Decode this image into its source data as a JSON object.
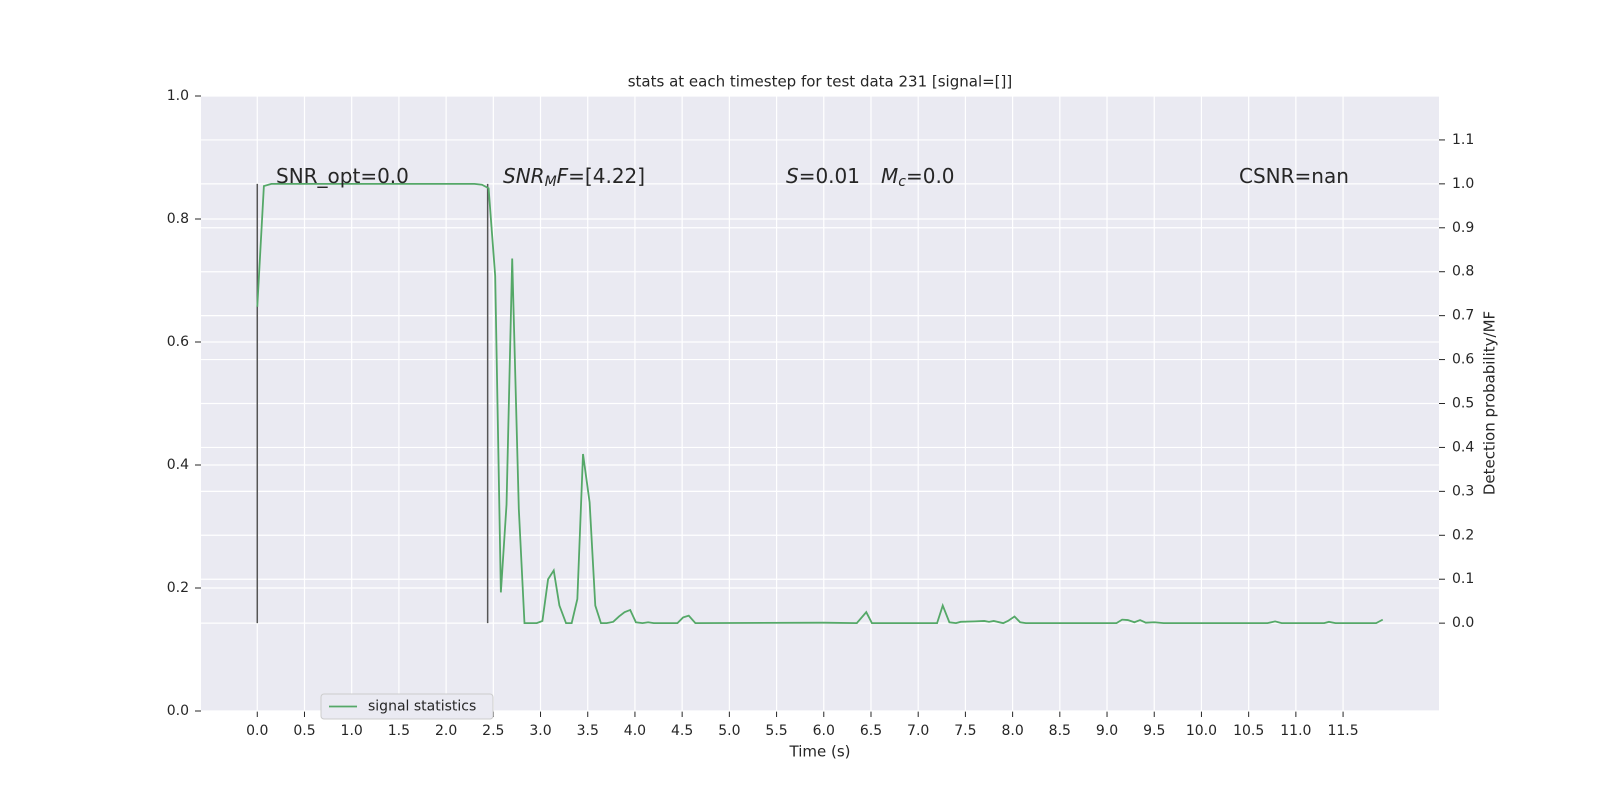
{
  "chart_data": {
    "type": "line",
    "title": "stats at each timestep for test data 231 [signal=[]]",
    "xlabel": "Time (s)",
    "y2label": "Detection probability/MF",
    "annotations": [
      {
        "parts": [
          "SNR_opt=0.0"
        ]
      },
      {
        "parts": [
          "SNR",
          "M",
          "F",
          "=[4.22]"
        ]
      },
      {
        "parts": [
          "S",
          "=0.01"
        ]
      },
      {
        "parts": [
          "M",
          "c",
          "=0.0"
        ]
      },
      {
        "parts": [
          "CSNR=nan"
        ]
      }
    ],
    "x": [
      0.0,
      0.07,
      0.15,
      2.3,
      2.38,
      2.45,
      2.52,
      2.58,
      2.64,
      2.7,
      2.77,
      2.83,
      2.9,
      2.96,
      3.02,
      3.08,
      3.14,
      3.2,
      3.27,
      3.33,
      3.39,
      3.45,
      3.52,
      3.58,
      3.64,
      3.7,
      3.77,
      3.83,
      3.89,
      3.95,
      4.01,
      4.08,
      4.14,
      4.2,
      4.45,
      4.51,
      4.57,
      4.64,
      6.0,
      6.35,
      6.45,
      6.51,
      7.2,
      7.26,
      7.33,
      7.4,
      7.45,
      7.6,
      7.7,
      7.75,
      7.8,
      7.9,
      7.95,
      8.02,
      8.08,
      8.14,
      9.1,
      9.16,
      9.22,
      9.29,
      9.35,
      9.41,
      9.5,
      9.6,
      10.7,
      10.78,
      10.85,
      11.3,
      11.35,
      11.42,
      11.85,
      11.92
    ],
    "series": [
      {
        "name": "signal statistics",
        "color": "#55a868",
        "axis": "y2",
        "values": [
          0.72,
          0.995,
          1.0,
          1.0,
          0.998,
          0.99,
          0.79,
          0.07,
          0.27,
          0.83,
          0.26,
          0.0,
          0.0,
          0.0,
          0.005,
          0.1,
          0.12,
          0.04,
          0.0,
          0.0,
          0.055,
          0.385,
          0.275,
          0.04,
          0.0,
          0.0,
          0.003,
          0.015,
          0.025,
          0.03,
          0.002,
          0.0,
          0.002,
          0.0,
          0.0,
          0.013,
          0.017,
          0.0,
          0.001,
          0.0,
          0.025,
          0.0,
          0.0,
          0.04,
          0.002,
          0.0,
          0.003,
          0.004,
          0.005,
          0.003,
          0.005,
          0.0,
          0.005,
          0.015,
          0.002,
          0.0,
          0.0,
          0.008,
          0.007,
          0.002,
          0.007,
          0.001,
          0.002,
          0.0,
          0.0,
          0.004,
          0.0,
          0.0,
          0.003,
          0.0,
          0.0,
          0.008
        ]
      }
    ],
    "vlines": {
      "x": [
        0.0,
        2.44
      ],
      "ymin": 0,
      "ymax": 1,
      "color": "#555555",
      "axis": "y2"
    },
    "xlim": [
      -0.596,
      12.516
    ],
    "xticks": [
      {
        "value": 0,
        "label": "0.0"
      },
      0.5,
      {
        "value": 1,
        "label": "1.0"
      },
      1.5,
      {
        "value": 2,
        "label": "2.0"
      },
      2.5,
      {
        "value": 3,
        "label": "3.0"
      },
      3.5,
      {
        "value": 4,
        "label": "4.0"
      },
      4.5,
      {
        "value": 5,
        "label": "5.0"
      },
      5.5,
      {
        "value": 6,
        "label": "6.0"
      },
      6.5,
      {
        "value": 7,
        "label": "7.0"
      },
      7.5,
      {
        "value": 8,
        "label": "8.0"
      },
      8.5,
      {
        "value": 9,
        "label": "9.0"
      },
      9.5,
      {
        "value": 10,
        "label": "10.0"
      },
      10.5,
      {
        "value": 11,
        "label": "11.0"
      },
      11.5
    ],
    "ylim": [
      0,
      1
    ],
    "yticks": [
      {
        "value": 0,
        "label": "0.0"
      },
      0.2,
      0.4,
      0.6,
      0.8,
      {
        "value": 1,
        "label": "1.0"
      }
    ],
    "y2lim": [
      -0.2,
      1.2
    ],
    "y2ticks": [
      {
        "value": 0,
        "label": "0.0"
      },
      0.1,
      0.2,
      0.3,
      0.4,
      0.5,
      0.6,
      0.7,
      0.8,
      0.9,
      {
        "value": 1,
        "label": "1.0"
      },
      1.1
    ],
    "grid": true,
    "background": "#eaeaf2",
    "legend": "lower left"
  }
}
